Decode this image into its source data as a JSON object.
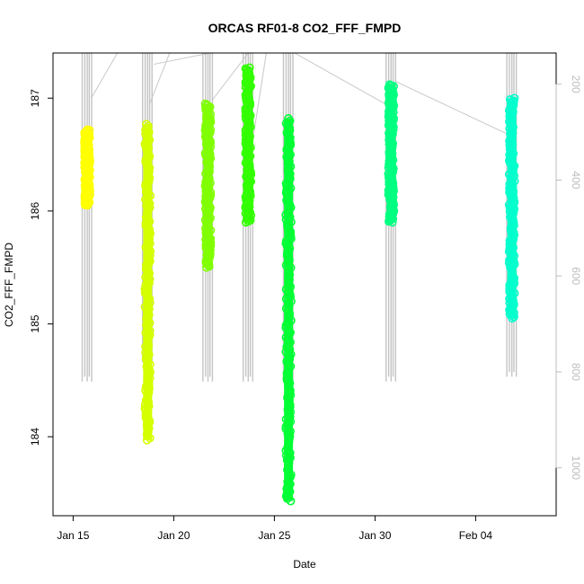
{
  "chart_data": {
    "type": "scatter",
    "title": "ORCAS RF01-8 CO2_FFF_FMPD",
    "xlabel": "Date",
    "ylabel": "CO2_FFF_FMPD",
    "x_ticks": [
      "Jan 15",
      "Jan 20",
      "Jan 25",
      "Jan 30",
      "Feb 04"
    ],
    "y_ticks": [
      "184",
      "185",
      "186",
      "187"
    ],
    "y2_ticks": [
      "200",
      "400",
      "600",
      "800",
      "1000"
    ],
    "ylim": [
      183.3,
      187.4
    ],
    "y2_range_note": "secondary axis (gray, right) plotted reversed: 200 top, 1000 bottom",
    "series": [
      {
        "color": "#ffff00",
        "x_day": 15.7,
        "y_min": 186.05,
        "y_max": 186.72,
        "pressure_min": 40,
        "pressure_max": 820
      },
      {
        "color": "#d4ff00",
        "x_day": 18.7,
        "y_min": 183.97,
        "y_max": 186.77,
        "pressure_min": 40,
        "pressure_max": 780
      },
      {
        "color": "#80ff00",
        "x_day": 21.7,
        "y_min": 185.5,
        "y_max": 186.95,
        "pressure_min": 40,
        "pressure_max": 820
      },
      {
        "color": "#33ff00",
        "x_day": 23.7,
        "y_min": 185.9,
        "y_max": 187.27,
        "pressure_min": 40,
        "pressure_max": 820
      },
      {
        "color": "#00ff33",
        "x_day": 25.7,
        "y_min": 183.43,
        "y_max": 186.82,
        "pressure_min": 40,
        "pressure_max": 820
      },
      {
        "color": "#00ff80",
        "x_day": 30.8,
        "y_min": 185.9,
        "y_max": 187.12,
        "pressure_min": 40,
        "pressure_max": 820
      },
      {
        "color": "#00ffcc",
        "x_day": 36.8,
        "y_min": 185.05,
        "y_max": 187.0,
        "pressure_min": 40,
        "pressure_max": 810
      }
    ]
  }
}
